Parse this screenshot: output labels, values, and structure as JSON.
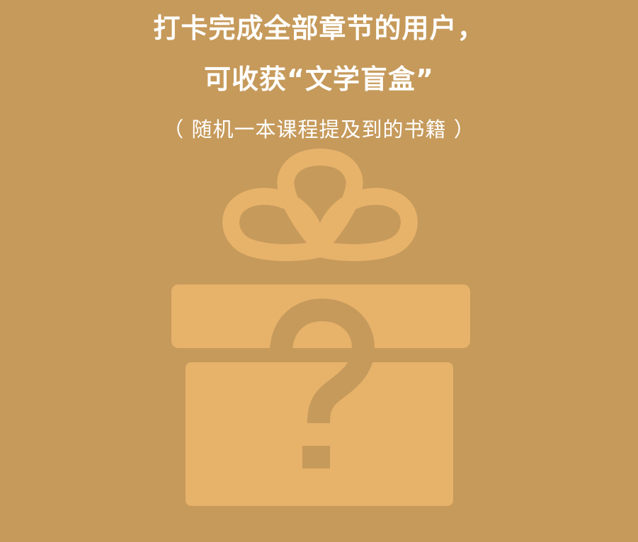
{
  "headline": {
    "line1": "打卡完成全部章节的用户，",
    "line2": "可收获“文学盲盒”"
  },
  "subtitle": "（ 随机一本课程提及到的书籍 ）",
  "illustration": {
    "icon": "gift-box-question-icon",
    "colors": {
      "background": "#c69a5b",
      "box": "#e7b26a",
      "question_mark": "#c69a5b",
      "text": "#ffffff"
    }
  }
}
